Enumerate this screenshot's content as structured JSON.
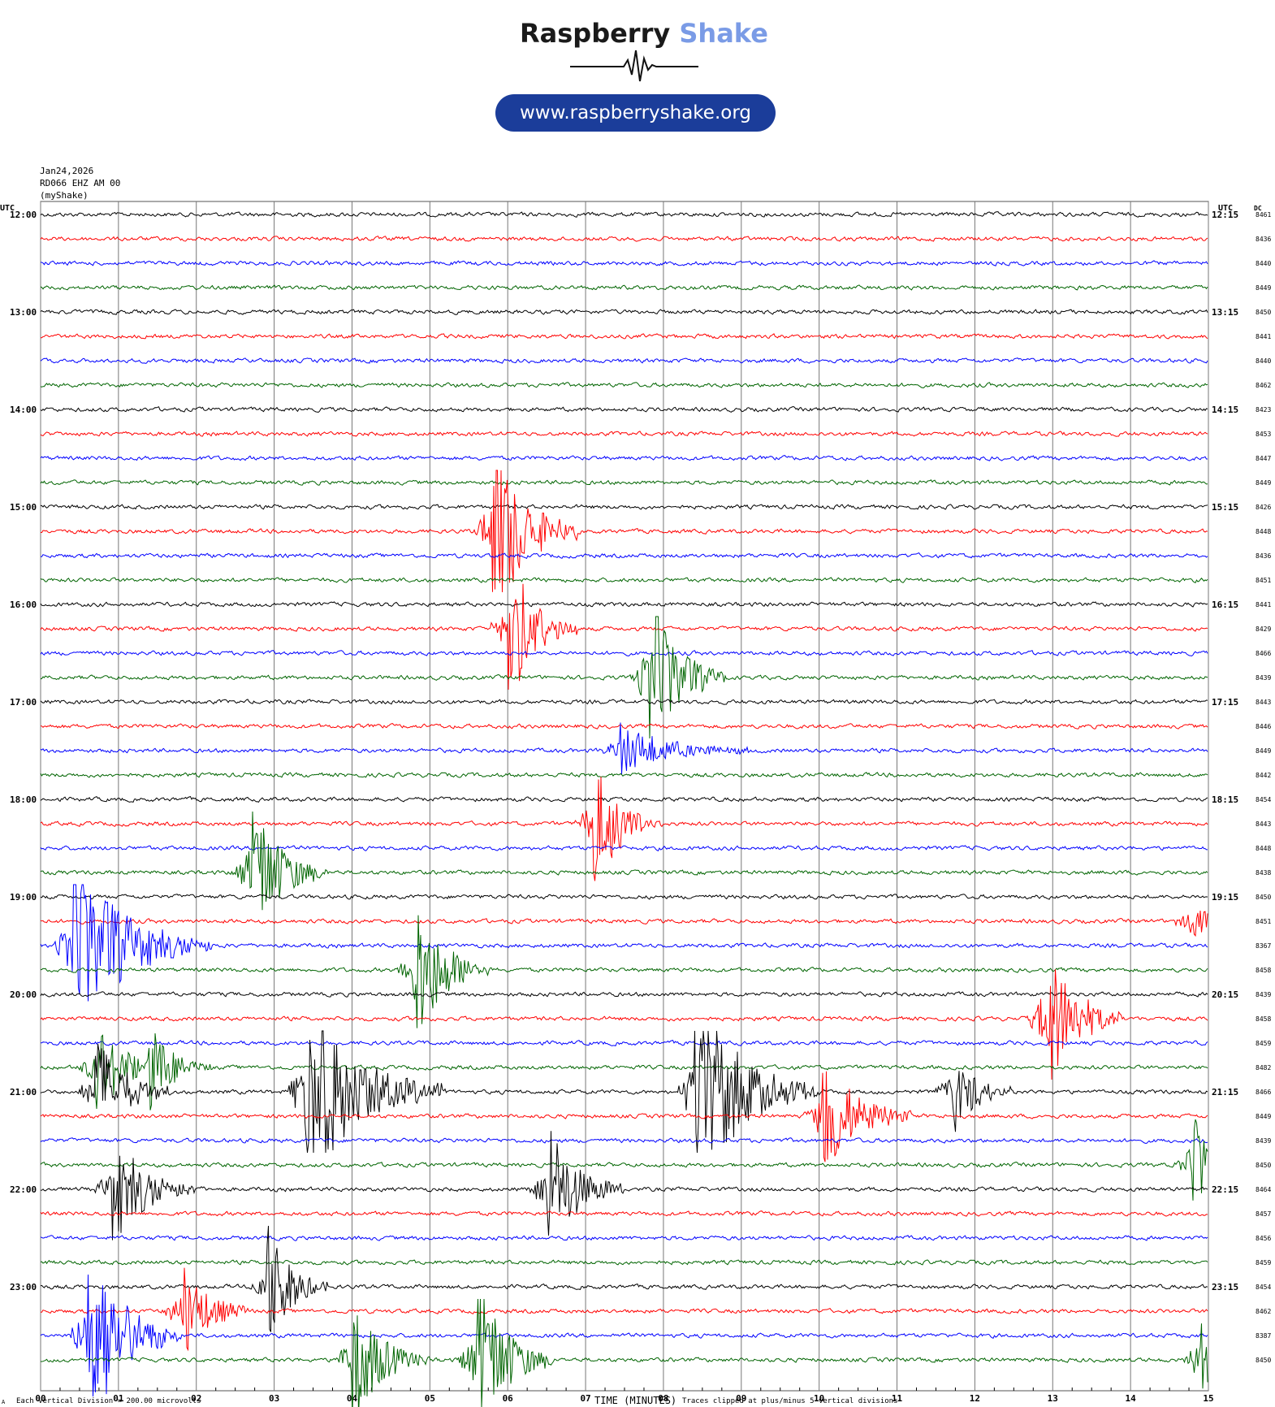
{
  "brand": {
    "word1": "Raspberry",
    "word2": "Shake",
    "url": "www.raspberryshake.org"
  },
  "header": {
    "date": "Jan24,2026",
    "station": "RD066 EHZ AM 00",
    "source": "(myShake)"
  },
  "footer": {
    "mark": "A",
    "left_note": "Each Vertical Division = 200.00 microvolts",
    "xlabel": "TIME (MINUTES)",
    "right_note": "Traces clipped at plus/minus 5 vertical divisions"
  },
  "chart_data": {
    "type": "line",
    "title": "",
    "xlabel": "TIME (MINUTES)",
    "ylabel": "",
    "xlim": [
      0,
      15
    ],
    "x_ticks": [
      "00",
      "01",
      "02",
      "03",
      "04",
      "05",
      "06",
      "07",
      "08",
      "09",
      "10",
      "11",
      "12",
      "13",
      "14",
      "15"
    ],
    "left_axis_label": "UTC",
    "right_axis_label": "UTC",
    "dc_label": "DC",
    "trace_colors": [
      "#000000",
      "#ff0000",
      "#0000ff",
      "#006400"
    ],
    "left_time_labels": [
      "12:00",
      "13:00",
      "14:00",
      "15:00",
      "16:00",
      "17:00",
      "18:00",
      "19:00",
      "20:00",
      "21:00",
      "22:00",
      "23:00"
    ],
    "right_time_labels": [
      "12:15",
      "13:15",
      "14:15",
      "15:15",
      "16:15",
      "17:15",
      "18:15",
      "19:15",
      "20:15",
      "21:15",
      "22:15",
      "23:15"
    ],
    "dc_values": [
      8461,
      8436,
      8440,
      8449,
      8450,
      8441,
      8440,
      8462,
      8423,
      8453,
      8447,
      8449,
      8426,
      8448,
      8436,
      8451,
      8441,
      8429,
      8466,
      8439,
      8443,
      8446,
      8449,
      8442,
      8454,
      8443,
      8448,
      8438,
      8450,
      8451,
      8367,
      8458,
      8439,
      8458,
      8459,
      8482,
      8466,
      8449,
      8439,
      8450,
      8464,
      8457,
      8456,
      8459,
      8454,
      8462,
      8387,
      8450
    ],
    "events": [
      {
        "trace": 13,
        "minute": 5.8,
        "amplitude": 4.5,
        "duration": 1.1
      },
      {
        "trace": 17,
        "minute": 6.0,
        "amplitude": 3.5,
        "duration": 0.9
      },
      {
        "trace": 19,
        "minute": 7.8,
        "amplitude": 4.0,
        "duration": 1.0
      },
      {
        "trace": 22,
        "minute": 7.4,
        "amplitude": 1.2,
        "duration": 1.8
      },
      {
        "trace": 25,
        "minute": 7.1,
        "amplitude": 3.0,
        "duration": 0.9
      },
      {
        "trace": 27,
        "minute": 2.7,
        "amplitude": 3.5,
        "duration": 1.0
      },
      {
        "trace": 29,
        "minute": 14.7,
        "amplitude": 0.8,
        "duration": 1.1
      },
      {
        "trace": 30,
        "minute": 0.4,
        "amplitude": 4.0,
        "duration": 1.8
      },
      {
        "trace": 31,
        "minute": 4.8,
        "amplitude": 3.5,
        "duration": 1.0
      },
      {
        "trace": 33,
        "minute": 12.9,
        "amplitude": 3.5,
        "duration": 1.0
      },
      {
        "trace": 35,
        "minute": 0.7,
        "amplitude": 2.2,
        "duration": 1.0
      },
      {
        "trace": 35,
        "minute": 1.4,
        "amplitude": 2.0,
        "duration": 0.8
      },
      {
        "trace": 36,
        "minute": 0.7,
        "amplitude": 2.5,
        "duration": 1.0
      },
      {
        "trace": 36,
        "minute": 3.4,
        "amplitude": 4.5,
        "duration": 1.8
      },
      {
        "trace": 36,
        "minute": 8.4,
        "amplitude": 4.5,
        "duration": 1.6
      },
      {
        "trace": 36,
        "minute": 11.7,
        "amplitude": 2.0,
        "duration": 0.8
      },
      {
        "trace": 37,
        "minute": 10.0,
        "amplitude": 3.0,
        "duration": 1.2
      },
      {
        "trace": 39,
        "minute": 14.8,
        "amplitude": 2.5,
        "duration": 0.6
      },
      {
        "trace": 40,
        "minute": 0.9,
        "amplitude": 2.5,
        "duration": 1.2
      },
      {
        "trace": 40,
        "minute": 6.5,
        "amplitude": 3.0,
        "duration": 1.0
      },
      {
        "trace": 44,
        "minute": 2.9,
        "amplitude": 3.0,
        "duration": 0.8
      },
      {
        "trace": 45,
        "minute": 1.8,
        "amplitude": 2.3,
        "duration": 0.9
      },
      {
        "trace": 46,
        "minute": 0.6,
        "amplitude": 4.5,
        "duration": 1.2
      },
      {
        "trace": 47,
        "minute": 4.0,
        "amplitude": 3.0,
        "duration": 1.0
      },
      {
        "trace": 47,
        "minute": 5.6,
        "amplitude": 4.0,
        "duration": 1.0
      },
      {
        "trace": 47,
        "minute": 14.9,
        "amplitude": 2.5,
        "duration": 0.4
      }
    ]
  }
}
